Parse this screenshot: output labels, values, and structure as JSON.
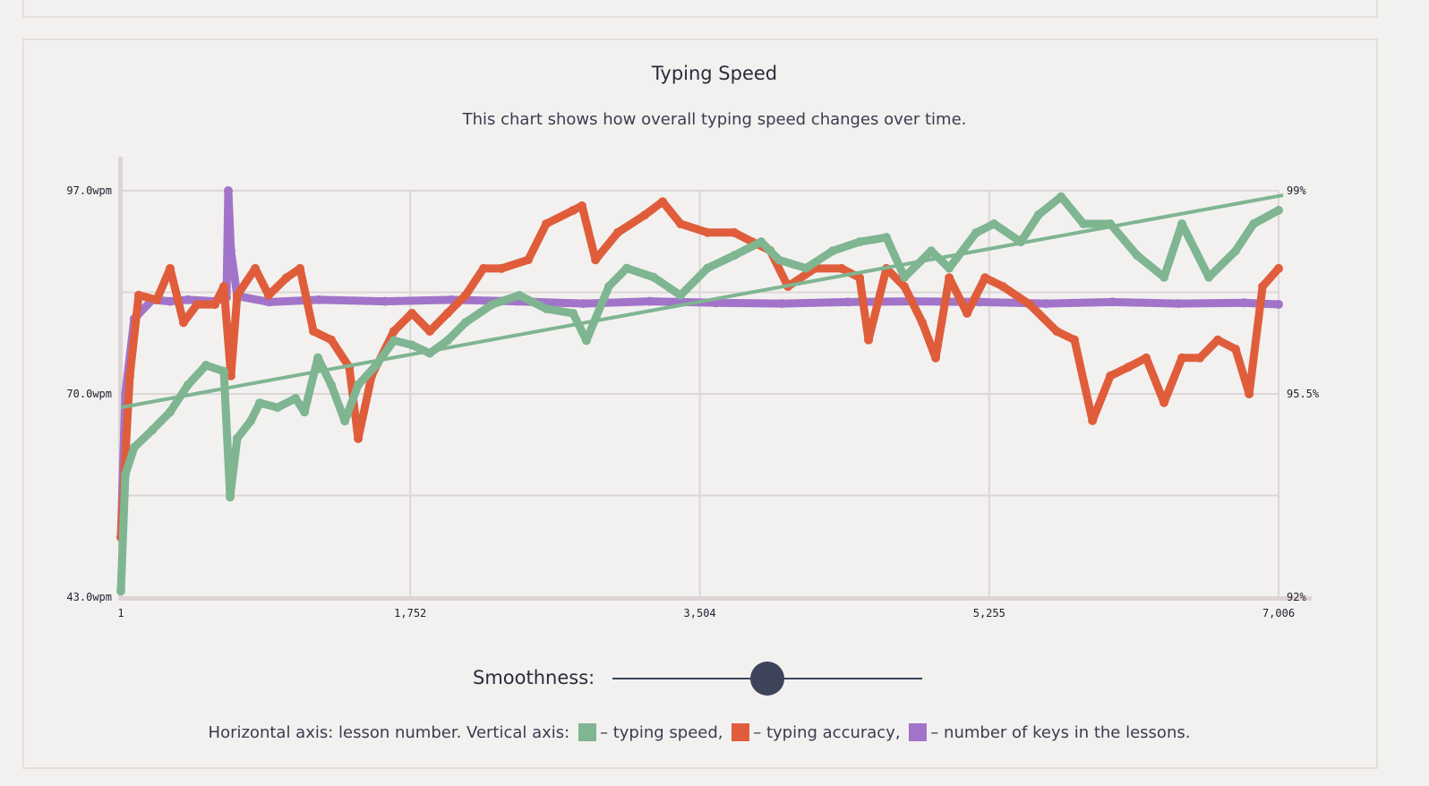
{
  "chart_data": {
    "type": "scatter",
    "title": "Typing Speed",
    "subtitle": "This chart shows how overall typing speed changes over time.",
    "xlabel": "lesson number",
    "x_ticks": [
      "1",
      "1,752",
      "3,504",
      "5,255",
      "7,006"
    ],
    "x_tick_values": [
      1,
      1752,
      3504,
      5255,
      7006
    ],
    "xlim": [
      1,
      7006
    ],
    "y_left_ticks": [
      "97.0wpm",
      "70.0wpm",
      "43.0wpm"
    ],
    "y_left_values": [
      97,
      70,
      43
    ],
    "ylim_left": [
      43,
      97
    ],
    "y_right_ticks": [
      "99%",
      "95.5%",
      "92%"
    ],
    "y_right_values": [
      99,
      95.5,
      92
    ],
    "ylim_right": [
      92,
      99
    ],
    "grid": true,
    "colors": {
      "speed": "#7fb591",
      "accuracy": "#e05d3b",
      "keys": "#a274c9",
      "grid": "#dcd6d6",
      "axis": "#ddd5d5"
    },
    "series": [
      {
        "name": "typing speed",
        "axis": "left",
        "points": [
          [
            1,
            43.8
          ],
          [
            28,
            59.3
          ],
          [
            82,
            62.9
          ],
          [
            191,
            65.2
          ],
          [
            299,
            67.6
          ],
          [
            407,
            71.2
          ],
          [
            516,
            73.8
          ],
          [
            624,
            73.0
          ],
          [
            662,
            56.3
          ],
          [
            705,
            64.1
          ],
          [
            787,
            66.4
          ],
          [
            841,
            68.8
          ],
          [
            949,
            68.2
          ],
          [
            1058,
            69.4
          ],
          [
            1112,
            67.6
          ],
          [
            1193,
            74.8
          ],
          [
            1274,
            71.2
          ],
          [
            1356,
            66.4
          ],
          [
            1437,
            71.2
          ],
          [
            1545,
            73.8
          ],
          [
            1653,
            77.1
          ],
          [
            1762,
            76.5
          ],
          [
            1870,
            75.4
          ],
          [
            1978,
            77.1
          ],
          [
            2087,
            79.5
          ],
          [
            2249,
            81.9
          ],
          [
            2412,
            83.1
          ],
          [
            2575,
            81.3
          ],
          [
            2737,
            80.7
          ],
          [
            2818,
            77.1
          ],
          [
            2954,
            84.3
          ],
          [
            3062,
            86.7
          ],
          [
            3225,
            85.5
          ],
          [
            3387,
            83.1
          ],
          [
            3550,
            86.7
          ],
          [
            3712,
            88.4
          ],
          [
            3875,
            90.2
          ],
          [
            3983,
            87.8
          ],
          [
            4146,
            86.7
          ],
          [
            4308,
            89.0
          ],
          [
            4471,
            90.2
          ],
          [
            4633,
            90.8
          ],
          [
            4742,
            85.5
          ],
          [
            4904,
            89.0
          ],
          [
            5013,
            86.7
          ],
          [
            5175,
            91.4
          ],
          [
            5284,
            92.6
          ],
          [
            5446,
            90.2
          ],
          [
            5554,
            93.8
          ],
          [
            5690,
            96.2
          ],
          [
            5825,
            92.6
          ],
          [
            5988,
            92.6
          ],
          [
            6150,
            88.4
          ],
          [
            6313,
            85.5
          ],
          [
            6421,
            92.6
          ],
          [
            6584,
            85.5
          ],
          [
            6746,
            89.0
          ],
          [
            6855,
            92.6
          ],
          [
            7006,
            94.4
          ]
        ]
      },
      {
        "name": "typing accuracy",
        "axis": "right",
        "points": [
          [
            1,
            93.03
          ],
          [
            55,
            95.81
          ],
          [
            109,
            97.2
          ],
          [
            218,
            97.12
          ],
          [
            299,
            97.66
          ],
          [
            380,
            96.73
          ],
          [
            462,
            97.04
          ],
          [
            570,
            97.04
          ],
          [
            624,
            97.35
          ],
          [
            667,
            95.81
          ],
          [
            705,
            97.2
          ],
          [
            814,
            97.66
          ],
          [
            895,
            97.2
          ],
          [
            1003,
            97.5
          ],
          [
            1085,
            97.66
          ],
          [
            1166,
            96.58
          ],
          [
            1274,
            96.43
          ],
          [
            1383,
            95.96
          ],
          [
            1437,
            94.73
          ],
          [
            1518,
            95.81
          ],
          [
            1653,
            96.58
          ],
          [
            1762,
            96.89
          ],
          [
            1870,
            96.58
          ],
          [
            1978,
            96.89
          ],
          [
            2087,
            97.2
          ],
          [
            2195,
            97.66
          ],
          [
            2304,
            97.66
          ],
          [
            2466,
            97.81
          ],
          [
            2575,
            98.43
          ],
          [
            2737,
            98.66
          ],
          [
            2791,
            98.74
          ],
          [
            2873,
            97.81
          ],
          [
            3008,
            98.28
          ],
          [
            3171,
            98.58
          ],
          [
            3279,
            98.81
          ],
          [
            3387,
            98.43
          ],
          [
            3550,
            98.28
          ],
          [
            3712,
            98.28
          ],
          [
            3821,
            98.12
          ],
          [
            3929,
            97.97
          ],
          [
            4037,
            97.35
          ],
          [
            4200,
            97.66
          ],
          [
            4362,
            97.66
          ],
          [
            4471,
            97.5
          ],
          [
            4525,
            96.43
          ],
          [
            4633,
            97.66
          ],
          [
            4742,
            97.35
          ],
          [
            4850,
            96.73
          ],
          [
            4931,
            96.12
          ],
          [
            5013,
            97.5
          ],
          [
            5121,
            96.89
          ],
          [
            5230,
            97.5
          ],
          [
            5338,
            97.35
          ],
          [
            5500,
            97.04
          ],
          [
            5663,
            96.58
          ],
          [
            5771,
            96.43
          ],
          [
            5880,
            95.04
          ],
          [
            5988,
            95.81
          ],
          [
            6096,
            95.96
          ],
          [
            6205,
            96.12
          ],
          [
            6313,
            95.35
          ],
          [
            6421,
            96.12
          ],
          [
            6530,
            96.12
          ],
          [
            6638,
            96.43
          ],
          [
            6746,
            96.27
          ],
          [
            6828,
            95.5
          ],
          [
            6909,
            97.35
          ],
          [
            7006,
            97.66
          ]
        ]
      },
      {
        "name": "number of keys in the lessons",
        "axis": "left",
        "points": [
          [
            1,
            51
          ],
          [
            28,
            70
          ],
          [
            82,
            80
          ],
          [
            191,
            82.5
          ],
          [
            299,
            82.3
          ],
          [
            407,
            82.5
          ],
          [
            570,
            82.3
          ],
          [
            640,
            82.8
          ],
          [
            651,
            97
          ],
          [
            667,
            89
          ],
          [
            705,
            83
          ],
          [
            900,
            82.2
          ],
          [
            1200,
            82.5
          ],
          [
            1600,
            82.3
          ],
          [
            2000,
            82.5
          ],
          [
            2400,
            82.3
          ],
          [
            2800,
            82.0
          ],
          [
            3200,
            82.3
          ],
          [
            3600,
            82.1
          ],
          [
            4000,
            82.0
          ],
          [
            4400,
            82.2
          ],
          [
            4800,
            82.3
          ],
          [
            5200,
            82.2
          ],
          [
            5600,
            82.0
          ],
          [
            6000,
            82.2
          ],
          [
            6400,
            82.0
          ],
          [
            6800,
            82.1
          ],
          [
            7006,
            81.9
          ]
        ]
      }
    ],
    "trend": {
      "name": "typing speed trend",
      "points": [
        [
          1,
          68.2
        ],
        [
          7006,
          96.4
        ]
      ]
    }
  },
  "controls": {
    "smoothness_label": "Smoothness:",
    "smoothness_value": 0.5
  },
  "legend": {
    "prefix": "Horizontal axis: lesson number. Vertical axis:",
    "speed": "– typing speed,",
    "accuracy": "– typing accuracy,",
    "keys": "– number of keys in the lessons."
  }
}
